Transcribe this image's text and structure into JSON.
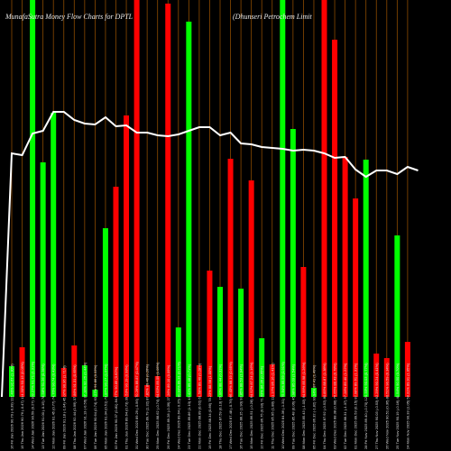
{
  "chart_data": {
    "type": "bar",
    "title": "MunafaSutra  Money Flow  Charts for DPTL",
    "subtitle": "(Dhunseri  Petrochem Limit",
    "colors": {
      "up": "#00ff00",
      "down": "#ff0000",
      "line": "#ffffff",
      "grid": "#8b4a00",
      "background": "#000000"
    },
    "ylim": [
      0,
      440
    ],
    "bars": [
      {
        "label": "16 Fri Jan 2026 90.70 (-0.39) 112.46% 92.67 (1.30%)",
        "dir": "up",
        "value": 34
      },
      {
        "label": "15 Thu Jan 2026 90.76 (-0.47) 114.30% 93.15 (0.05%)",
        "dir": "down",
        "value": 55
      },
      {
        "label": "14 Wed Jan 2026 90.59 (0.27) 103.27% 91.71 (1.31%)",
        "dir": "up",
        "value": 445
      },
      {
        "label": "13 Tue Jan 2026 91.00 (-0.15) 78.58% 91.26 (0.36%)",
        "dir": "up",
        "value": 260
      },
      {
        "label": "12 Mon Jan 2026 91.45 (0.77) 74.76% 90.74 (0.43%)",
        "dir": "up",
        "value": 315
      },
      {
        "label": "09 Fri Jan 2026 91.18 (-1.04) 45.07% 90.36 (1.71%)",
        "dir": "down",
        "value": 32
      },
      {
        "label": "08 Thu Jan 2026 92.44 (0.99) 37.86% 91.31 (0.65%)",
        "dir": "down",
        "value": 57
      },
      {
        "label": "07 Wed Jan 2026 91.13 (-0.56) 37.10% 92.25 (0.44%)",
        "dir": "up",
        "value": 35
      },
      {
        "label": "06 Tue Jan 2026 90.64 (0.74) 63.27% 91.86 (0.33%)",
        "dir": "up",
        "value": 8
      },
      {
        "label": "05 Mon Jan 2026 91.04 (0.51) 73.87% 90.27 (1.07%)",
        "dir": "up",
        "value": 187
      },
      {
        "label": "02 Fri Jan 2026 90.37 (0.81) 84.97% 90.89 (0.62%)",
        "dir": "down",
        "value": 233
      },
      {
        "label": "01 Thu Jan 2026 89.64 (0.73) 39.53% 90.19 (0.93%)",
        "dir": "down",
        "value": 312
      },
      {
        "label": "31 Wed Dec 2025 89.29 (-0.56) 70.26% 89.87 (0.47%)",
        "dir": "down",
        "value": 445
      },
      {
        "label": "30 Tue Dec 2025 89.79 (1.32) 87.82% 89.46 (0.26%)",
        "dir": "down",
        "value": 13
      },
      {
        "label": "29 Mon Dec 2025 88.62 (-0.74) 64.63% 89.09 (1.05%)",
        "dir": "down",
        "value": 23
      },
      {
        "label": "26 Fri Dec 2025 89.28 (-0.39) 27.26% 89.10 (0.09%)",
        "dir": "down",
        "value": 436
      },
      {
        "label": "24 Wed Dec 2025 89.64 (-0.25) 30.93% 89.31 (0.71%)",
        "dir": "up",
        "value": 77
      },
      {
        "label": "23 Tue Dec 2025 89.86 (1.10) 43.41% 89.48 (0.71%)",
        "dir": "up",
        "value": 416
      },
      {
        "label": "22 Mon Dec 2025 88.89 (0.62) 61.58% 89.40 (0.28%)",
        "dir": "down",
        "value": 35
      },
      {
        "label": "19 Fri Dec 2025 88.34 (0.86) 78.23% 88.98 (1.00%)",
        "dir": "down",
        "value": 140
      },
      {
        "label": "18 Thu Dec 2025 87.59 (0.13) 76.06% 88.44 (0.31%)",
        "dir": "up",
        "value": 122
      },
      {
        "label": "17 Wed Dec 2025 87.48 (-0.76) 66.43% 88.19 (0.65%)",
        "dir": "down",
        "value": 264
      },
      {
        "label": "16 Tue Dec 2025 88.15 (1.90) 93.85% 88.53 (1.94%)",
        "dir": "up",
        "value": 120
      },
      {
        "label": "15 Mon Dec 2025 86.51 (-0.28) 64.52% 87.24 (1.16%)",
        "dir": "down",
        "value": 240
      },
      {
        "label": "12 Fri Dec 2025 86.75 (0.93) 71.63% 86.36 (0.65%)",
        "dir": "up",
        "value": 65
      },
      {
        "label": "11 Thu Dec 2025 85.95 (1.88) 111.17% 86.16 (1.41%)",
        "dir": "down",
        "value": 36
      },
      {
        "label": "10 Wed Dec 2025 84.36 (-1.31) 75.94% 85.59 (1.91%)",
        "dir": "up",
        "value": 445
      },
      {
        "label": "09 Tue Dec 2025 85.48 (0.06) 45.98% 85.03 (1.54%)",
        "dir": "up",
        "value": 297
      },
      {
        "label": "08 Mon Dec 2025 85.43 (-1.03) 64.99% 85.98 (1.26%)",
        "dir": "down",
        "value": 144
      },
      {
        "label": "05 Fri Dec 2025 86.32 (-1.82) 93.94% 87.41 (1.49%)",
        "dir": "up",
        "value": 10
      },
      {
        "label": "04 Thu Dec 2025 87.92 (-0.52) 80.85% 88.87 (1.38%)",
        "dir": "down",
        "value": 445
      },
      {
        "label": "03 Wed Dec 2025 88.38 (0.08) 76.65% 88.43 (0.78%)",
        "dir": "down",
        "value": 396
      },
      {
        "label": "02 Tue Dec 2025 88.31 (-1.37) 57.28% 89.40 (1.22%)",
        "dir": "down",
        "value": 266
      },
      {
        "label": "01 Mon Dec 2025 89.53 (0.15) 82.98% 89.61 (1.31%)",
        "dir": "down",
        "value": 220
      },
      {
        "label": "28 Fri Nov 2025 89.40 (-0.70) 120.33% 90.03 (0.77%)",
        "dir": "up",
        "value": 263
      },
      {
        "label": "27 Thu Nov 2025 90.03 (-0.53) 62.29% 90.24 (0.41%)",
        "dir": "down",
        "value": 48
      },
      {
        "label": "26 Wed Nov 2025 90.51 (0.36) 80.51% 90.59 (0.34%)",
        "dir": "down",
        "value": 43
      },
      {
        "label": "25 Tue Nov 2025 90.19 (-0.16) 41.54% 90.50 (0.70%)",
        "dir": "up",
        "value": 179
      },
      {
        "label": "24 Mon Nov 2025 90.33 (1.05) 58.31% 89.91 (1.05%)",
        "dir": "down",
        "value": 61
      }
    ],
    "line": [
      170,
      172,
      148,
      145,
      124,
      124,
      133,
      137,
      138,
      130,
      140,
      139,
      147,
      147,
      150,
      151,
      149,
      145,
      141,
      141,
      150,
      147,
      159,
      160,
      163,
      164,
      165,
      167,
      166,
      167,
      170,
      175,
      174,
      188,
      196,
      189,
      189,
      193,
      185,
      189
    ]
  }
}
